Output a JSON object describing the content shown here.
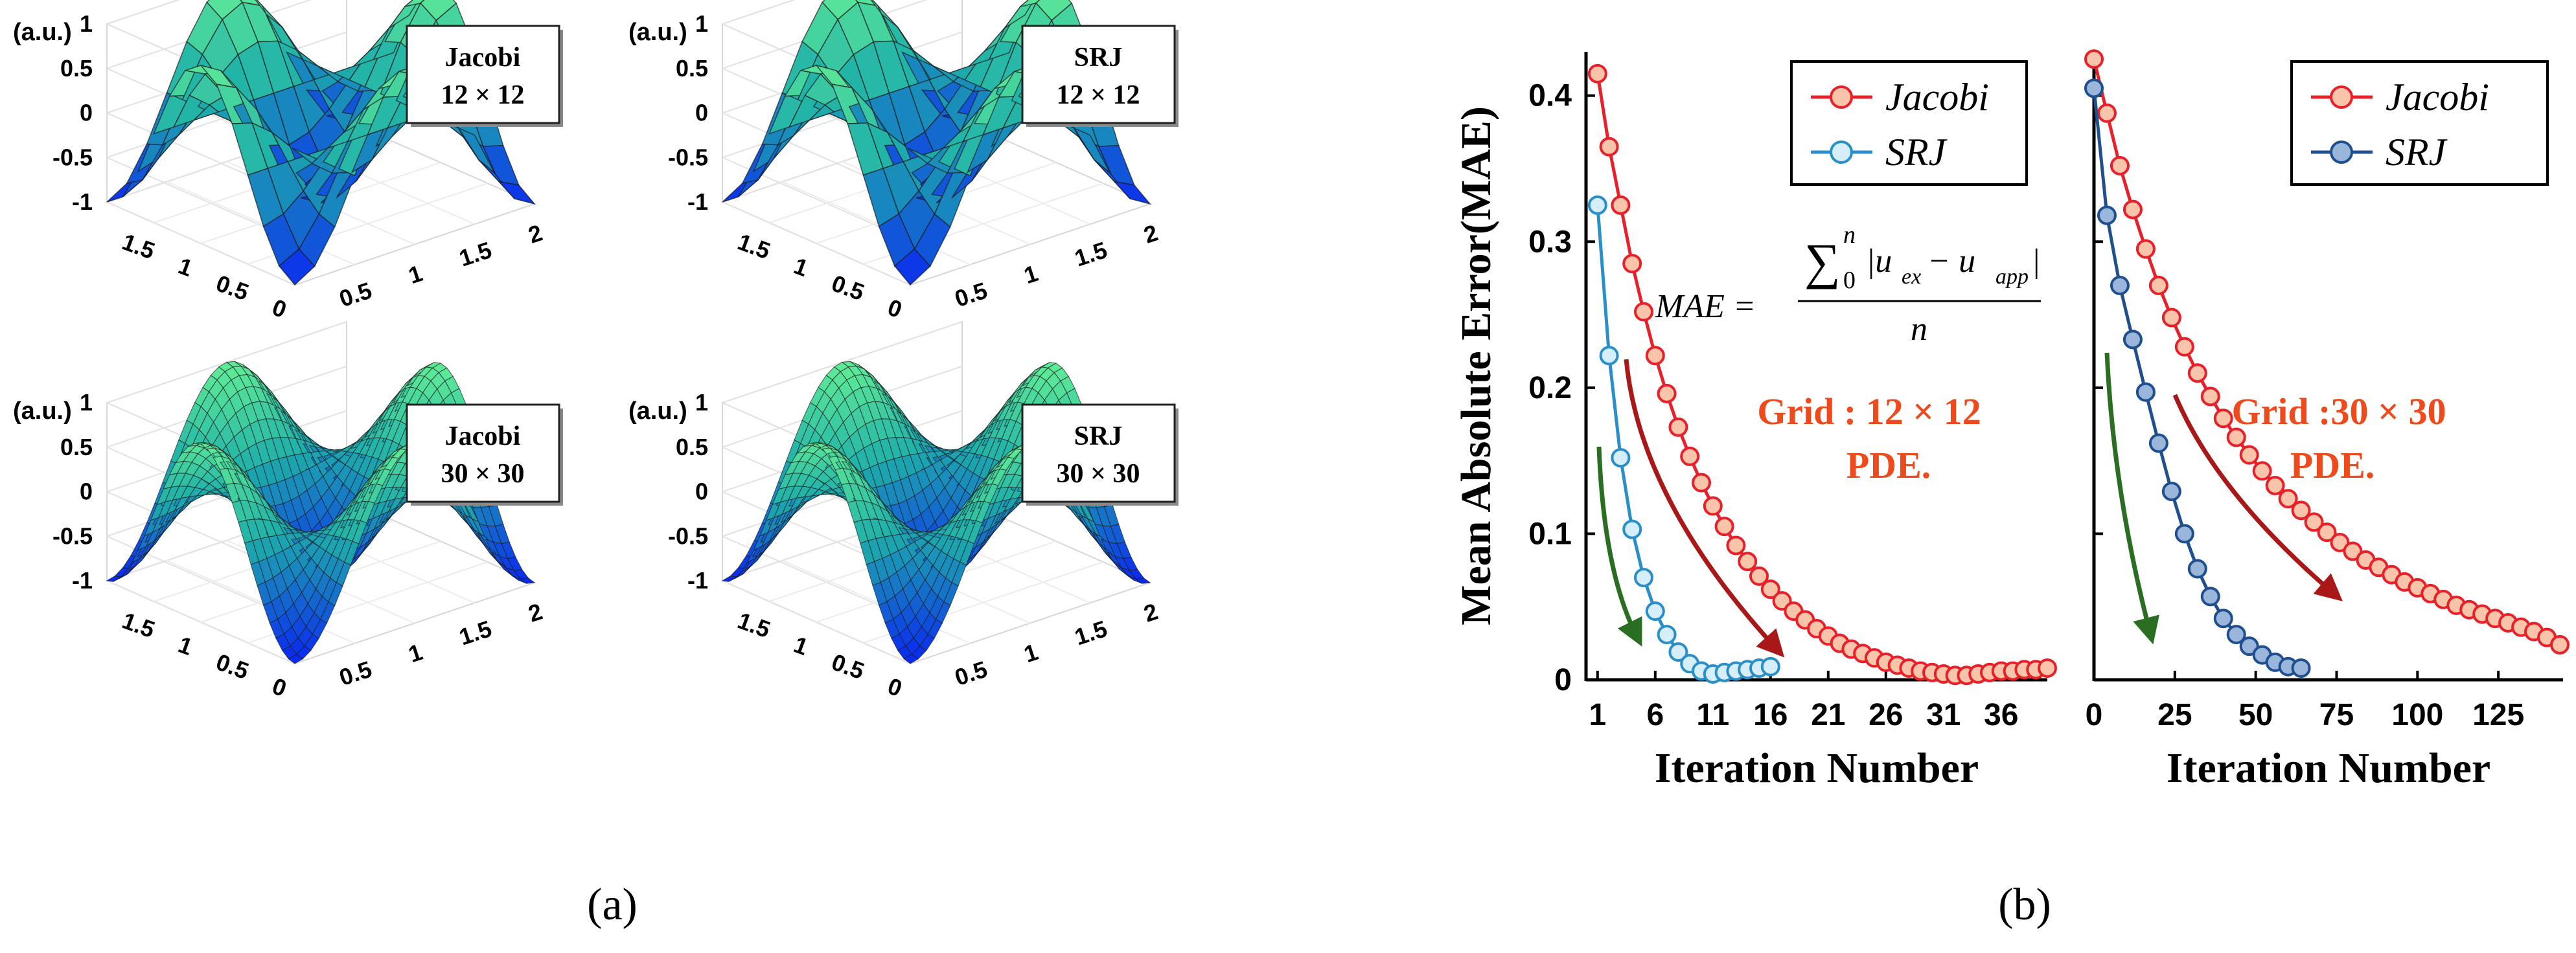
{
  "panel_a": {
    "caption": "(a)",
    "plots": [
      {
        "box_line1": "Jacobi",
        "box_line2": "12 × 12",
        "unit": "(a.u.)",
        "grid": 12
      },
      {
        "box_line1": "SRJ",
        "box_line2": "12 × 12",
        "unit": "(a.u.)",
        "grid": 12
      },
      {
        "box_line1": "Jacobi",
        "box_line2": "30 × 30",
        "unit": "(a.u.)",
        "grid": 30
      },
      {
        "box_line1": "SRJ",
        "box_line2": "30 × 30",
        "unit": "(a.u.)",
        "grid": 30
      }
    ],
    "z_ticks": [
      "1",
      "0.5",
      "0",
      "-0.5",
      "-1"
    ],
    "left_axis_ticks": [
      "1.5",
      "1",
      "0.5",
      "0"
    ],
    "right_axis_ticks": [
      "0.5",
      "1",
      "1.5",
      "2"
    ]
  },
  "panel_b": {
    "caption": "(b)",
    "ylabel": "Mean Absolute Error(MAE)",
    "formula": {
      "lhs": "MAE =",
      "sum": "∑",
      "sum_upper": "n",
      "sum_lower": "0",
      "numerator_body": "|u",
      "sub1": "ex",
      "minus": " − u",
      "sub2": "app",
      "close": "|",
      "denominator": "n"
    }
  },
  "colors": {
    "jacobi_line": "#e8202a",
    "jacobi_fill": "#f9c4aa",
    "srj_left_line": "#2a8fc8",
    "srj_left_fill": "#d6eefa",
    "srj_right_line": "#1f4f8f",
    "srj_right_fill": "#9bb6db",
    "arrow_red": "#a81818",
    "arrow_green": "#2a6e22",
    "annotation": "#ee4a1c"
  },
  "chart_data": [
    {
      "type": "line",
      "title": "",
      "xlabel": "Iteration Number",
      "ylabel": "Mean Absolute Error(MAE)",
      "xlim": [
        0,
        40
      ],
      "ylim": [
        0,
        0.43
      ],
      "xticks": [
        1,
        6,
        11,
        16,
        21,
        26,
        31,
        36
      ],
      "xtick_labels": [
        "1",
        "6",
        "11",
        "16",
        "21",
        "26",
        "31",
        "36"
      ],
      "yticks": [
        0,
        0.1,
        0.2,
        0.3,
        0.4
      ],
      "ytick_labels": [
        "0",
        "0.1",
        "0.2",
        "0.3",
        "0.4"
      ],
      "legend": "top-right",
      "annotation_line1": "Grid : 12 × 12",
      "annotation_line2": "PDE.",
      "series": [
        {
          "name": "Jacobi",
          "x": [
            1,
            2,
            3,
            4,
            5,
            6,
            7,
            8,
            9,
            10,
            11,
            12,
            13,
            14,
            15,
            16,
            17,
            18,
            19,
            20,
            21,
            22,
            23,
            24,
            25,
            26,
            27,
            28,
            29,
            30,
            31,
            32,
            33,
            34,
            35,
            36,
            37,
            38,
            39,
            40
          ],
          "values": [
            0.415,
            0.365,
            0.325,
            0.285,
            0.252,
            0.222,
            0.196,
            0.173,
            0.153,
            0.135,
            0.119,
            0.105,
            0.092,
            0.081,
            0.071,
            0.062,
            0.054,
            0.047,
            0.041,
            0.035,
            0.03,
            0.025,
            0.021,
            0.018,
            0.015,
            0.012,
            0.01,
            0.008,
            0.006,
            0.005,
            0.004,
            0.003,
            0.003,
            0.004,
            0.005,
            0.006,
            0.006,
            0.007,
            0.007,
            0.008
          ]
        },
        {
          "name": "SRJ",
          "x": [
            1,
            2,
            3,
            4,
            5,
            6,
            7,
            8,
            9,
            10,
            11,
            12,
            13,
            14,
            15,
            16
          ],
          "values": [
            0.325,
            0.222,
            0.152,
            0.103,
            0.07,
            0.047,
            0.031,
            0.019,
            0.011,
            0.006,
            0.004,
            0.005,
            0.006,
            0.007,
            0.008,
            0.009
          ]
        }
      ]
    },
    {
      "type": "line",
      "title": "",
      "xlabel": "Iteration Number",
      "ylabel": "",
      "xlim": [
        0,
        145
      ],
      "ylim": [
        0,
        0.43
      ],
      "xticks": [
        0,
        25,
        50,
        75,
        100,
        125
      ],
      "xtick_labels": [
        "0",
        "25",
        "50",
        "75",
        "100",
        "125"
      ],
      "yticks": [
        0,
        0.1,
        0.2,
        0.3,
        0.4
      ],
      "legend": "top-right",
      "annotation_line1": "Grid :30 × 30",
      "annotation_line2": "PDE.",
      "series": [
        {
          "name": "Jacobi",
          "x": [
            0,
            4,
            8,
            12,
            16,
            20,
            24,
            28,
            32,
            36,
            40,
            44,
            48,
            52,
            56,
            60,
            64,
            68,
            72,
            76,
            80,
            84,
            88,
            92,
            96,
            100,
            104,
            108,
            112,
            116,
            120,
            124,
            128,
            132,
            136,
            140,
            144
          ],
          "values": [
            0.425,
            0.388,
            0.352,
            0.322,
            0.295,
            0.27,
            0.248,
            0.228,
            0.21,
            0.194,
            0.179,
            0.166,
            0.154,
            0.143,
            0.133,
            0.124,
            0.116,
            0.108,
            0.101,
            0.094,
            0.088,
            0.082,
            0.077,
            0.072,
            0.067,
            0.063,
            0.059,
            0.055,
            0.051,
            0.048,
            0.045,
            0.042,
            0.039,
            0.036,
            0.033,
            0.029,
            0.024
          ]
        },
        {
          "name": "SRJ",
          "x": [
            0,
            4,
            8,
            12,
            16,
            20,
            24,
            28,
            32,
            36,
            40,
            44,
            48,
            52,
            56,
            60,
            64
          ],
          "values": [
            0.405,
            0.318,
            0.27,
            0.233,
            0.197,
            0.162,
            0.129,
            0.1,
            0.076,
            0.057,
            0.042,
            0.031,
            0.023,
            0.017,
            0.012,
            0.009,
            0.008
          ]
        }
      ]
    }
  ]
}
